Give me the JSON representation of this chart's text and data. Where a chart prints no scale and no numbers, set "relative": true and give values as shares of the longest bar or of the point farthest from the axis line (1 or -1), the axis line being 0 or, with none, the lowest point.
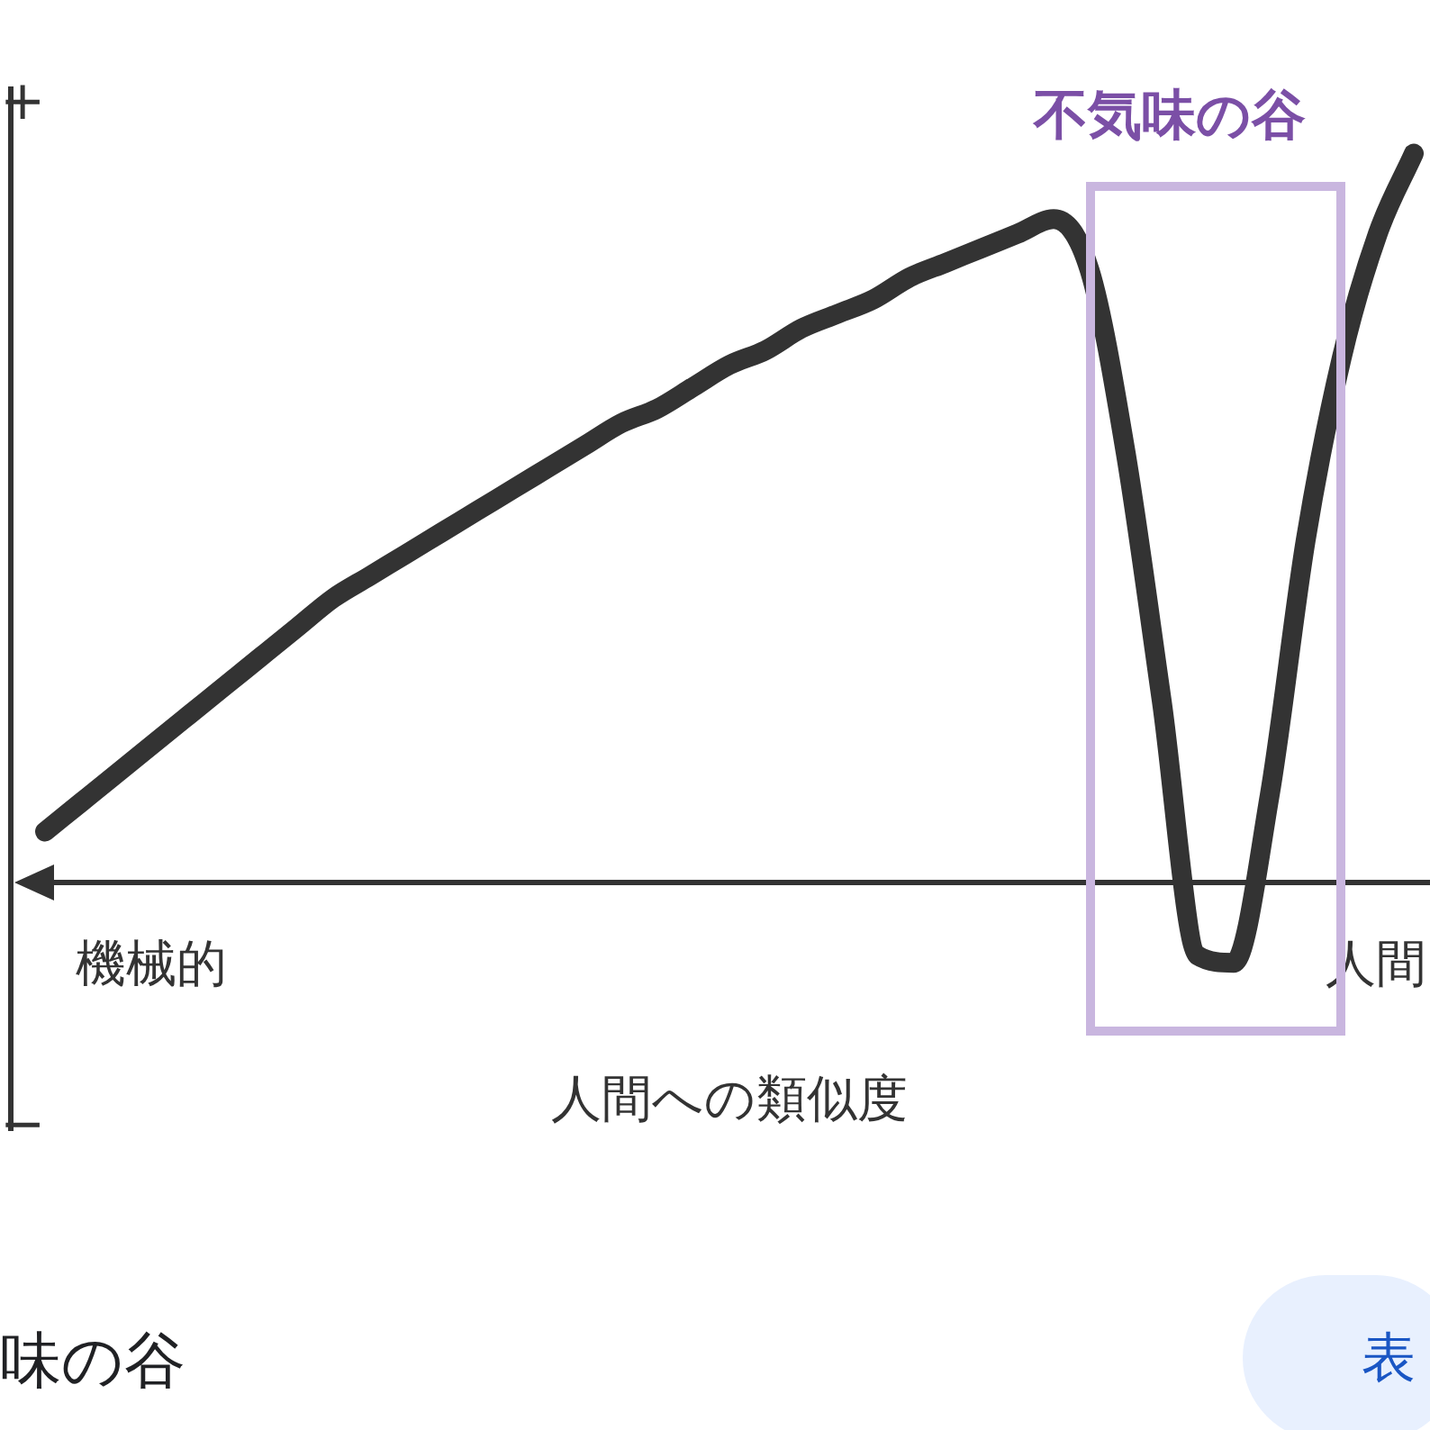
{
  "chart_data": {
    "type": "line",
    "relative": true,
    "xlabel": "人間への類似度",
    "categories": [
      null,
      null,
      null,
      null,
      null,
      null,
      null,
      null,
      null,
      null,
      null,
      null,
      null,
      null,
      null,
      null,
      null,
      null,
      null,
      null,
      null,
      null,
      null,
      null,
      null,
      null,
      null,
      null,
      null,
      null,
      null,
      null,
      null,
      null,
      null,
      null,
      null,
      null,
      null
    ],
    "series": [
      {
        "color": "#333333",
        "values": [
          0.07,
          0.11,
          0.15,
          0.19,
          0.23,
          0.27,
          0.31,
          0.35,
          0.39,
          0.42,
          0.45,
          0.48,
          0.51,
          0.54,
          0.57,
          0.6,
          0.63,
          0.65,
          0.68,
          0.71,
          0.73,
          0.76,
          0.78,
          0.8,
          0.83,
          0.85,
          0.87,
          0.89,
          0.91,
          0.84,
          0.59,
          0.25,
          -0.1,
          -0.11,
          0.12,
          0.47,
          0.72,
          0.89,
          1
        ]
      }
    ],
    "marker": "none",
    "line_style": "solid",
    "legend": false,
    "annotations": [
      "+",
      "−",
      "機械的",
      "人間",
      "味の谷",
      "表",
      "不気味の谷"
    ]
  }
}
